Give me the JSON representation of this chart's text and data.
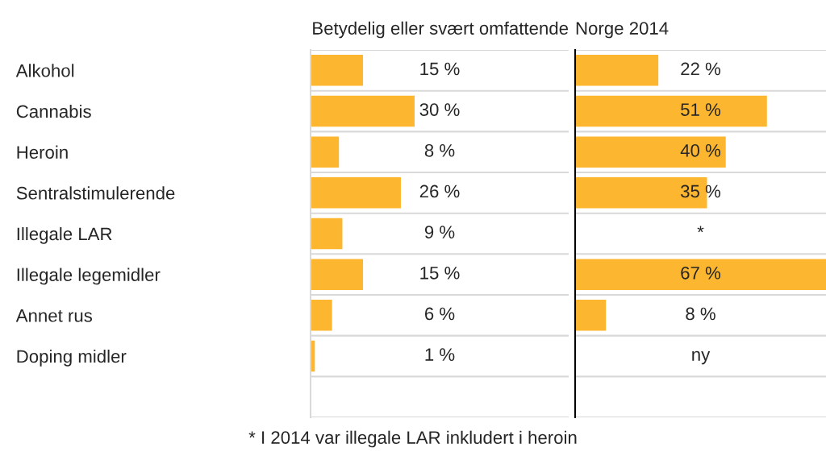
{
  "chart_data": [
    {
      "type": "bar",
      "orientation": "horizontal",
      "title": "Betydelig eller svært omfattende",
      "categories": [
        "Alkohol",
        "Cannabis",
        "Heroin",
        "Sentralstimulerende",
        "Illegale LAR",
        "Illegale legemidler",
        "Annet rus",
        "Doping midler"
      ],
      "values": [
        15,
        30,
        8,
        26,
        9,
        15,
        6,
        1
      ],
      "value_labels": [
        "15 %",
        "30 %",
        "8 %",
        "26 %",
        "9 %",
        "15 %",
        "6 %",
        "1 %"
      ],
      "color": "#fdb62f",
      "xlim": [
        0,
        75
      ],
      "tick_labels": "y",
      "grid": "y"
    },
    {
      "type": "bar",
      "orientation": "horizontal",
      "title": "Norge 2014",
      "categories": [
        null,
        null,
        null,
        null,
        null,
        null,
        null,
        null
      ],
      "values": [
        22,
        51,
        40,
        35,
        null,
        67,
        8,
        null
      ],
      "value_labels": [
        "22 %",
        "51 %",
        "40 %",
        "35 %",
        "*",
        "67 %",
        "8 %",
        "ny"
      ],
      "color": "#fdb62f",
      "xlim": [
        0,
        67
      ],
      "tick_labels": false,
      "grid": "y",
      "annotations": [
        "* I 2014 var illegale LAR inkludert i heroin"
      ]
    }
  ]
}
